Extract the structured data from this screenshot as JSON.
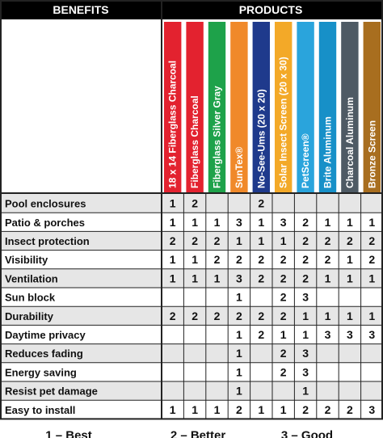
{
  "header": {
    "benefits_label": "BENEFITS",
    "products_label": "PRODUCTS"
  },
  "chart_data": {
    "type": "table",
    "products": [
      {
        "name": "18 x 14 Fiberglass Charcoal",
        "color": "#e3222f"
      },
      {
        "name": "Fiberglass Charcoal",
        "color": "#e3222f"
      },
      {
        "name": "Fiberglass Silver Gray",
        "color": "#1ea24a"
      },
      {
        "name": "SunTex®",
        "color": "#f0892a"
      },
      {
        "name": "No-See-Ums (20 x 20)",
        "color": "#1f3a8c"
      },
      {
        "name": "Solar Insect Screen (20 x 30)",
        "color": "#f3a928"
      },
      {
        "name": "PetScreen®",
        "color": "#2aa4dc"
      },
      {
        "name": "Brite Aluminum",
        "color": "#1790c8"
      },
      {
        "name": "Charcoal Aluminum",
        "color": "#4e5a64"
      },
      {
        "name": "Bronze Screen",
        "color": "#a86e1f"
      }
    ],
    "rows": [
      {
        "benefit": "Pool enclosures",
        "values": [
          "1",
          "2",
          "",
          "",
          "2",
          "",
          "",
          "",
          "",
          ""
        ]
      },
      {
        "benefit": "Patio & porches",
        "values": [
          "1",
          "1",
          "1",
          "3",
          "1",
          "3",
          "2",
          "1",
          "1",
          "1"
        ]
      },
      {
        "benefit": "Insect protection",
        "values": [
          "2",
          "2",
          "2",
          "1",
          "1",
          "1",
          "2",
          "2",
          "2",
          "2"
        ]
      },
      {
        "benefit": "Visibility",
        "values": [
          "1",
          "1",
          "2",
          "2",
          "2",
          "2",
          "2",
          "2",
          "1",
          "2"
        ]
      },
      {
        "benefit": "Ventilation",
        "values": [
          "1",
          "1",
          "1",
          "3",
          "2",
          "2",
          "2",
          "1",
          "1",
          "1"
        ]
      },
      {
        "benefit": "Sun block",
        "values": [
          "",
          "",
          "",
          "1",
          "",
          "2",
          "3",
          "",
          "",
          ""
        ]
      },
      {
        "benefit": "Durability",
        "values": [
          "2",
          "2",
          "2",
          "2",
          "2",
          "2",
          "1",
          "1",
          "1",
          "1"
        ]
      },
      {
        "benefit": "Daytime privacy",
        "values": [
          "",
          "",
          "",
          "1",
          "2",
          "1",
          "1",
          "3",
          "3",
          "3"
        ]
      },
      {
        "benefit": "Reduces fading",
        "values": [
          "",
          "",
          "",
          "1",
          "",
          "2",
          "3",
          "",
          "",
          ""
        ]
      },
      {
        "benefit": "Energy saving",
        "values": [
          "",
          "",
          "",
          "1",
          "",
          "2",
          "3",
          "",
          "",
          ""
        ]
      },
      {
        "benefit": "Resist pet damage",
        "values": [
          "",
          "",
          "",
          "1",
          "",
          "",
          "1",
          "",
          "",
          ""
        ]
      },
      {
        "benefit": "Easy to install",
        "values": [
          "1",
          "1",
          "1",
          "2",
          "1",
          "1",
          "2",
          "2",
          "2",
          "3"
        ]
      }
    ],
    "legend": [
      {
        "label": "1 –  Best"
      },
      {
        "label": "2 – Better"
      },
      {
        "label": "3 – Good"
      }
    ],
    "colors": {
      "header_bg": "#000000",
      "row_even_bg": "#ffffff",
      "row_odd_bg": "#e6e6e6",
      "grid": "#222222"
    }
  }
}
